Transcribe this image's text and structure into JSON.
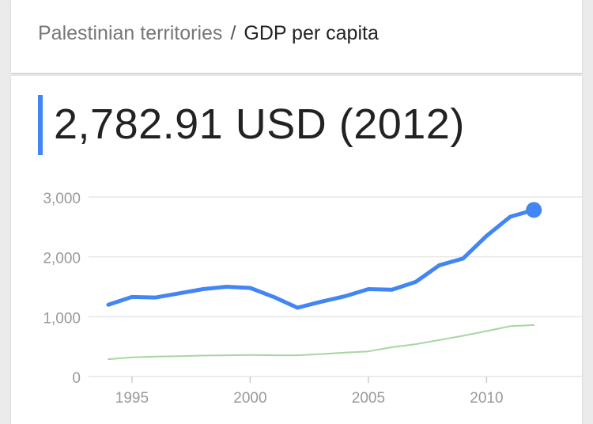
{
  "breadcrumb": {
    "parent": "Palestinian territories",
    "separator": "/",
    "current": "GDP per capita"
  },
  "headline": {
    "value": "2,782.91 USD (2012)"
  },
  "colors": {
    "primary_series": "#4285f4",
    "comparison_series": "#a8d5a2",
    "grid": "#e6e6e6",
    "tick_text": "#999999"
  },
  "chart_data": {
    "type": "line",
    "title": "",
    "xlabel": "",
    "ylabel": "",
    "xlim": [
      1993.5,
      2013.5
    ],
    "ylim": [
      0,
      3000
    ],
    "grid": true,
    "y_ticks": [
      0,
      1000,
      2000,
      3000
    ],
    "y_tick_labels": [
      "0",
      "1,000",
      "2,000",
      "3,000"
    ],
    "x_ticks": [
      1995,
      2000,
      2005,
      2010
    ],
    "x_tick_labels": [
      "1995",
      "2000",
      "2005",
      "2010"
    ],
    "series": [
      {
        "x": [
          1994,
          1995,
          1996,
          1997,
          1998,
          1999,
          2000,
          2001,
          2002,
          2003,
          2004,
          2005,
          2006,
          2007,
          2008,
          2009,
          2010,
          2011,
          2012
        ],
        "values": [
          1200,
          1330,
          1320,
          1390,
          1460,
          1500,
          1480,
          1330,
          1150,
          1250,
          1340,
          1460,
          1450,
          1580,
          1860,
          1970,
          2350,
          2670,
          2783
        ],
        "highlight_last": true
      },
      {
        "x": [
          1994,
          1995,
          1996,
          1997,
          1998,
          1999,
          2000,
          2001,
          2002,
          2003,
          2004,
          2005,
          2006,
          2007,
          2008,
          2009,
          2010,
          2011,
          2012
        ],
        "values": [
          290,
          320,
          335,
          340,
          350,
          355,
          360,
          355,
          355,
          375,
          400,
          420,
          490,
          540,
          610,
          680,
          760,
          840,
          860
        ]
      }
    ]
  }
}
